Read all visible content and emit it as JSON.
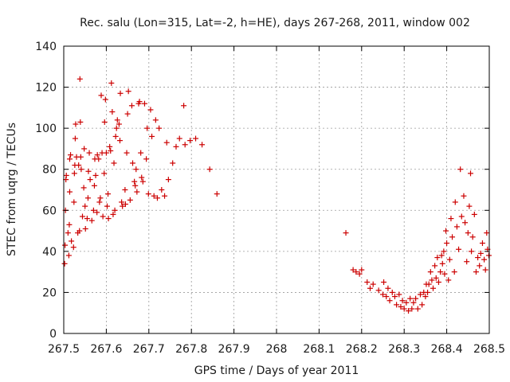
{
  "chart_data": {
    "type": "scatter",
    "title": "Rec. salu (Lon=315, Lat=-2, h=HE), days 267-268, 2011, window 002",
    "xlabel": "GPS time / Days of year 2011",
    "ylabel": "STEC from uqrg / TECUs",
    "xlim": [
      267.5,
      268.5
    ],
    "ylim": [
      0,
      140
    ],
    "xticks": [
      267.5,
      267.6,
      267.7,
      267.8,
      267.9,
      268.0,
      268.1,
      268.2,
      268.3,
      268.4,
      268.5
    ],
    "xtick_labels": [
      "267.5",
      "267.6",
      "267.7",
      "267.8",
      "267.9",
      "268",
      "268.1",
      "268.2",
      "268.3",
      "268.4",
      "268.5"
    ],
    "yticks": [
      0,
      20,
      40,
      60,
      80,
      100,
      120,
      140
    ],
    "ytick_labels": [
      "0",
      "20",
      "40",
      "60",
      "80",
      "100",
      "120",
      "140"
    ],
    "grid": true,
    "marker": "+",
    "color": "#cc0000",
    "series": [
      {
        "name": "STEC",
        "points": [
          [
            267.502,
            34
          ],
          [
            267.503,
            43
          ],
          [
            267.504,
            60
          ],
          [
            267.505,
            75
          ],
          [
            267.506,
            77
          ],
          [
            267.51,
            49
          ],
          [
            267.512,
            38
          ],
          [
            267.513,
            53
          ],
          [
            267.514,
            69
          ],
          [
            267.514,
            85
          ],
          [
            267.516,
            87
          ],
          [
            267.518,
            45
          ],
          [
            267.523,
            42
          ],
          [
            267.524,
            64
          ],
          [
            267.525,
            78
          ],
          [
            267.526,
            82
          ],
          [
            267.527,
            95
          ],
          [
            267.528,
            102
          ],
          [
            267.53,
            86
          ],
          [
            267.533,
            49
          ],
          [
            267.535,
            82
          ],
          [
            267.537,
            50
          ],
          [
            267.538,
            124
          ],
          [
            267.539,
            103
          ],
          [
            267.54,
            86
          ],
          [
            267.541,
            80
          ],
          [
            267.544,
            57
          ],
          [
            267.547,
            71
          ],
          [
            267.548,
            90
          ],
          [
            267.55,
            62
          ],
          [
            267.551,
            51
          ],
          [
            267.555,
            56
          ],
          [
            267.557,
            66
          ],
          [
            267.558,
            79
          ],
          [
            267.56,
            88
          ],
          [
            267.562,
            75
          ],
          [
            267.566,
            55
          ],
          [
            267.57,
            60
          ],
          [
            267.572,
            72
          ],
          [
            267.573,
            85
          ],
          [
            267.575,
            77
          ],
          [
            267.578,
            59
          ],
          [
            267.579,
            87
          ],
          [
            267.582,
            85
          ],
          [
            267.584,
            64
          ],
          [
            267.586,
            66
          ],
          [
            267.588,
            116
          ],
          [
            267.59,
            88
          ],
          [
            267.592,
            57
          ],
          [
            267.595,
            78
          ],
          [
            267.596,
            103
          ],
          [
            267.598,
            114
          ],
          [
            267.6,
            88
          ],
          [
            267.602,
            62
          ],
          [
            267.604,
            68
          ],
          [
            267.605,
            56
          ],
          [
            267.608,
            91
          ],
          [
            267.61,
            89
          ],
          [
            267.612,
            122
          ],
          [
            267.614,
            108
          ],
          [
            267.616,
            58
          ],
          [
            267.618,
            83
          ],
          [
            267.62,
            60
          ],
          [
            267.622,
            96
          ],
          [
            267.624,
            100
          ],
          [
            267.626,
            104
          ],
          [
            267.63,
            102
          ],
          [
            267.632,
            94
          ],
          [
            267.633,
            117
          ],
          [
            267.636,
            64
          ],
          [
            267.638,
            62
          ],
          [
            267.644,
            70
          ],
          [
            267.645,
            63
          ],
          [
            267.648,
            88
          ],
          [
            267.65,
            107
          ],
          [
            267.652,
            118
          ],
          [
            267.656,
            65
          ],
          [
            267.66,
            111
          ],
          [
            267.662,
            83
          ],
          [
            267.666,
            74
          ],
          [
            267.668,
            72
          ],
          [
            267.67,
            80
          ],
          [
            267.672,
            69
          ],
          [
            267.676,
            112
          ],
          [
            267.678,
            113
          ],
          [
            267.681,
            88
          ],
          [
            267.683,
            76
          ],
          [
            267.686,
            74
          ],
          [
            267.69,
            112
          ],
          [
            267.694,
            85
          ],
          [
            267.696,
            100
          ],
          [
            267.699,
            68
          ],
          [
            267.704,
            109
          ],
          [
            267.707,
            96
          ],
          [
            267.712,
            67
          ],
          [
            267.716,
            104
          ],
          [
            267.72,
            66
          ],
          [
            267.724,
            100
          ],
          [
            267.73,
            70
          ],
          [
            267.737,
            67
          ],
          [
            267.742,
            93
          ],
          [
            267.746,
            75
          ],
          [
            267.756,
            83
          ],
          [
            267.764,
            91
          ],
          [
            267.772,
            95
          ],
          [
            267.782,
            111
          ],
          [
            267.785,
            92
          ],
          [
            267.797,
            94
          ],
          [
            267.81,
            95
          ],
          [
            267.825,
            92
          ],
          [
            267.843,
            80
          ],
          [
            267.86,
            68
          ],
          [
            268.163,
            49
          ],
          [
            268.18,
            31
          ],
          [
            268.187,
            30
          ],
          [
            268.195,
            29
          ],
          [
            268.2,
            31
          ],
          [
            268.213,
            25
          ],
          [
            268.22,
            22
          ],
          [
            268.227,
            24
          ],
          [
            268.24,
            21
          ],
          [
            268.25,
            19
          ],
          [
            268.252,
            25
          ],
          [
            268.258,
            18
          ],
          [
            268.262,
            22
          ],
          [
            268.266,
            16
          ],
          [
            268.272,
            20
          ],
          [
            268.278,
            18
          ],
          [
            268.282,
            14
          ],
          [
            268.288,
            19
          ],
          [
            268.292,
            13
          ],
          [
            268.296,
            16
          ],
          [
            268.3,
            12
          ],
          [
            268.305,
            15
          ],
          [
            268.31,
            11
          ],
          [
            268.314,
            17
          ],
          [
            268.318,
            12
          ],
          [
            268.322,
            15
          ],
          [
            268.327,
            17
          ],
          [
            268.332,
            12
          ],
          [
            268.338,
            19
          ],
          [
            268.342,
            14
          ],
          [
            268.346,
            20
          ],
          [
            268.35,
            18
          ],
          [
            268.352,
            24
          ],
          [
            268.355,
            20
          ],
          [
            268.358,
            24
          ],
          [
            268.362,
            30
          ],
          [
            268.365,
            26
          ],
          [
            268.368,
            22
          ],
          [
            268.372,
            33
          ],
          [
            268.375,
            27
          ],
          [
            268.378,
            37
          ],
          [
            268.381,
            25
          ],
          [
            268.385,
            30
          ],
          [
            268.388,
            38
          ],
          [
            268.39,
            34
          ],
          [
            268.393,
            40
          ],
          [
            268.395,
            29
          ],
          [
            268.398,
            50
          ],
          [
            268.4,
            44
          ],
          [
            268.404,
            26
          ],
          [
            268.407,
            36
          ],
          [
            268.41,
            56
          ],
          [
            268.413,
            47
          ],
          [
            268.418,
            30
          ],
          [
            268.42,
            64
          ],
          [
            268.424,
            52
          ],
          [
            268.428,
            41
          ],
          [
            268.432,
            80
          ],
          [
            268.435,
            57
          ],
          [
            268.44,
            67
          ],
          [
            268.443,
            54
          ],
          [
            268.447,
            35
          ],
          [
            268.45,
            49
          ],
          [
            268.453,
            62
          ],
          [
            268.456,
            78
          ],
          [
            268.458,
            40
          ],
          [
            268.461,
            47
          ],
          [
            268.465,
            58
          ],
          [
            268.469,
            30
          ],
          [
            268.473,
            37
          ],
          [
            268.477,
            33
          ],
          [
            268.48,
            39
          ],
          [
            268.484,
            44
          ],
          [
            268.488,
            36
          ],
          [
            268.491,
            31
          ],
          [
            268.494,
            49
          ],
          [
            268.496,
            41
          ],
          [
            268.499,
            38
          ]
        ]
      }
    ]
  }
}
